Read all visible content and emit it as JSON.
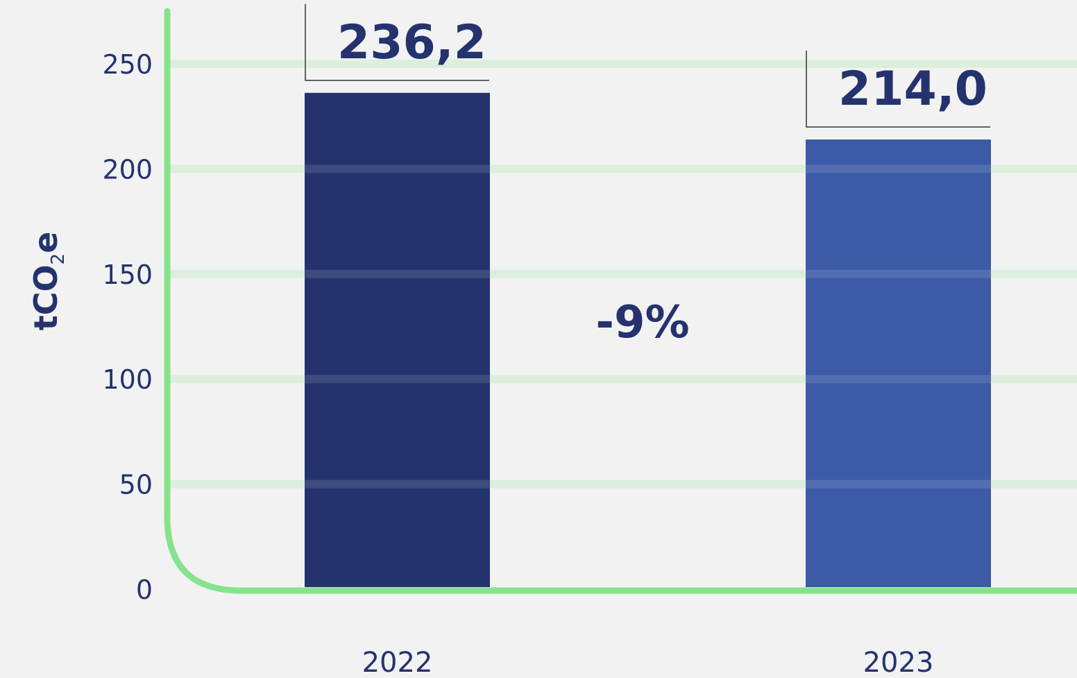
{
  "chart_data": {
    "type": "bar",
    "categories": [
      "2022",
      "2023"
    ],
    "values": [
      236.2,
      214.0
    ],
    "value_labels": [
      "236,2",
      "214,0"
    ],
    "bar_colors": [
      "#24336e",
      "#3c5aa6"
    ],
    "ylabel_main": "tCO",
    "ylabel_sub": "2",
    "ylabel_end": "e",
    "ylim": [
      0,
      250
    ],
    "yticks": [
      0,
      50,
      100,
      150,
      200,
      250
    ],
    "grid": true,
    "grid_color": "#dcefdc",
    "axis_color": "#86e38c",
    "change_annotation": "-9%"
  }
}
